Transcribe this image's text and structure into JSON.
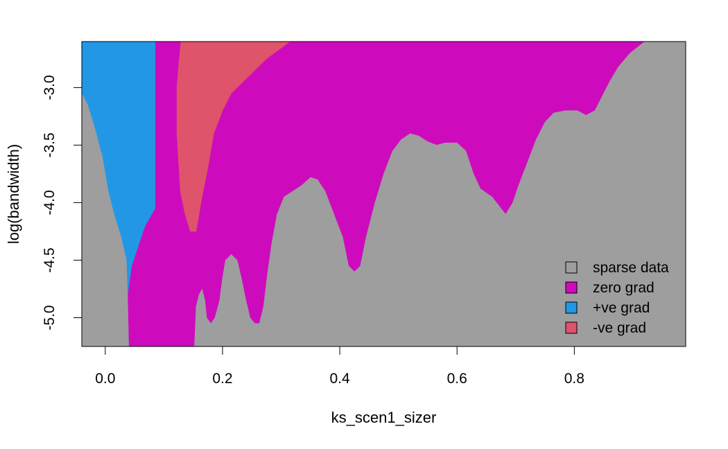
{
  "chart_data": {
    "type": "heatmap",
    "title": "",
    "xlabel": "ks_scen1_sizer",
    "ylabel": "log(bandwidth)",
    "xlim": [
      -0.04,
      0.99
    ],
    "ylim": [
      -5.25,
      -2.6
    ],
    "xticks": [
      0.0,
      0.2,
      0.4,
      0.6,
      0.8
    ],
    "xtick_labels": [
      "0.0",
      "0.2",
      "0.4",
      "0.6",
      "0.8"
    ],
    "yticks": [
      -3.0,
      -3.5,
      -4.0,
      -4.5,
      -5.0
    ],
    "ytick_labels": [
      "-3.0",
      "-3.5",
      "-4.0",
      "-4.5",
      "-5.0"
    ],
    "legend_position": "bottom-right",
    "categories": [
      {
        "key": "sparse",
        "label": "sparse data",
        "color": "#9e9e9e"
      },
      {
        "key": "zero",
        "label": "zero grad",
        "color": "#cd0bbc"
      },
      {
        "key": "pos",
        "label": "+ve grad",
        "color": "#2297e6"
      },
      {
        "key": "neg",
        "label": "-ve grad",
        "color": "#df536b"
      }
    ],
    "regions": [
      {
        "category": "zero",
        "points": [
          [
            -0.04,
            -2.6
          ],
          [
            0.99,
            -2.6
          ],
          [
            0.99,
            -5.25
          ],
          [
            -0.04,
            -5.25
          ]
        ]
      },
      {
        "category": "pos",
        "points": [
          [
            -0.04,
            -2.6
          ],
          [
            0.085,
            -2.6
          ],
          [
            0.085,
            -4.05
          ],
          [
            0.068,
            -4.2
          ],
          [
            0.058,
            -4.35
          ],
          [
            0.045,
            -4.55
          ],
          [
            0.038,
            -4.8
          ],
          [
            0.036,
            -4.5
          ],
          [
            0.027,
            -4.3
          ],
          [
            0.015,
            -4.1
          ],
          [
            0.005,
            -3.9
          ],
          [
            -0.005,
            -3.6
          ],
          [
            -0.018,
            -3.35
          ],
          [
            -0.03,
            -3.15
          ],
          [
            -0.04,
            -3.05
          ]
        ]
      },
      {
        "category": "neg",
        "points": [
          [
            0.129,
            -2.6
          ],
          [
            0.315,
            -2.6
          ],
          [
            0.275,
            -2.75
          ],
          [
            0.245,
            -2.9
          ],
          [
            0.215,
            -3.05
          ],
          [
            0.2,
            -3.2
          ],
          [
            0.185,
            -3.4
          ],
          [
            0.175,
            -3.7
          ],
          [
            0.165,
            -3.95
          ],
          [
            0.155,
            -4.25
          ],
          [
            0.145,
            -4.25
          ],
          [
            0.136,
            -4.1
          ],
          [
            0.128,
            -3.9
          ],
          [
            0.122,
            -3.4
          ],
          [
            0.122,
            -3.0
          ],
          [
            0.126,
            -2.75
          ]
        ]
      },
      {
        "category": "sparse",
        "points": [
          [
            -0.04,
            -3.05
          ],
          [
            -0.03,
            -3.15
          ],
          [
            -0.018,
            -3.35
          ],
          [
            -0.005,
            -3.6
          ],
          [
            0.005,
            -3.9
          ],
          [
            0.015,
            -4.1
          ],
          [
            0.027,
            -4.3
          ],
          [
            0.036,
            -4.5
          ],
          [
            0.038,
            -4.8
          ],
          [
            0.04,
            -5.25
          ],
          [
            -0.04,
            -5.25
          ]
        ]
      },
      {
        "category": "sparse",
        "points": [
          [
            0.152,
            -5.25
          ],
          [
            0.155,
            -4.9
          ],
          [
            0.16,
            -4.8
          ],
          [
            0.165,
            -4.75
          ],
          [
            0.17,
            -4.85
          ],
          [
            0.173,
            -5.0
          ],
          [
            0.18,
            -5.05
          ],
          [
            0.187,
            -5.0
          ],
          [
            0.195,
            -4.85
          ],
          [
            0.2,
            -4.65
          ],
          [
            0.205,
            -4.5
          ],
          [
            0.215,
            -4.45
          ],
          [
            0.225,
            -4.5
          ],
          [
            0.232,
            -4.65
          ],
          [
            0.24,
            -4.85
          ],
          [
            0.247,
            -5.0
          ],
          [
            0.255,
            -5.05
          ],
          [
            0.263,
            -5.05
          ],
          [
            0.27,
            -4.9
          ],
          [
            0.277,
            -4.6
          ],
          [
            0.284,
            -4.35
          ],
          [
            0.293,
            -4.1
          ],
          [
            0.305,
            -3.95
          ],
          [
            0.32,
            -3.9
          ],
          [
            0.335,
            -3.85
          ],
          [
            0.35,
            -3.78
          ],
          [
            0.362,
            -3.8
          ],
          [
            0.375,
            -3.9
          ],
          [
            0.39,
            -4.1
          ],
          [
            0.405,
            -4.3
          ],
          [
            0.415,
            -4.55
          ],
          [
            0.425,
            -4.6
          ],
          [
            0.435,
            -4.55
          ],
          [
            0.445,
            -4.3
          ],
          [
            0.46,
            -4.0
          ],
          [
            0.475,
            -3.75
          ],
          [
            0.49,
            -3.55
          ],
          [
            0.505,
            -3.45
          ],
          [
            0.52,
            -3.4
          ],
          [
            0.535,
            -3.42
          ],
          [
            0.55,
            -3.47
          ],
          [
            0.565,
            -3.5
          ],
          [
            0.58,
            -3.48
          ],
          [
            0.6,
            -3.48
          ],
          [
            0.615,
            -3.55
          ],
          [
            0.628,
            -3.75
          ],
          [
            0.64,
            -3.88
          ],
          [
            0.66,
            -3.95
          ],
          [
            0.675,
            -4.05
          ],
          [
            0.683,
            -4.1
          ],
          [
            0.695,
            -4.0
          ],
          [
            0.705,
            -3.85
          ],
          [
            0.72,
            -3.65
          ],
          [
            0.735,
            -3.45
          ],
          [
            0.75,
            -3.3
          ],
          [
            0.765,
            -3.22
          ],
          [
            0.785,
            -3.2
          ],
          [
            0.805,
            -3.2
          ],
          [
            0.82,
            -3.24
          ],
          [
            0.835,
            -3.2
          ],
          [
            0.845,
            -3.1
          ],
          [
            0.86,
            -2.95
          ],
          [
            0.875,
            -2.82
          ],
          [
            0.895,
            -2.7
          ],
          [
            0.915,
            -2.62
          ],
          [
            0.92,
            -2.6
          ],
          [
            0.99,
            -2.6
          ],
          [
            0.99,
            -5.25
          ]
        ]
      }
    ],
    "legend": {
      "items": [
        {
          "label": "sparse data",
          "color": "#9e9e9e"
        },
        {
          "label": "zero grad",
          "color": "#cd0bbc"
        },
        {
          "label": "+ve grad",
          "color": "#2297e6"
        },
        {
          "label": "-ve grad",
          "color": "#df536b"
        }
      ]
    }
  }
}
